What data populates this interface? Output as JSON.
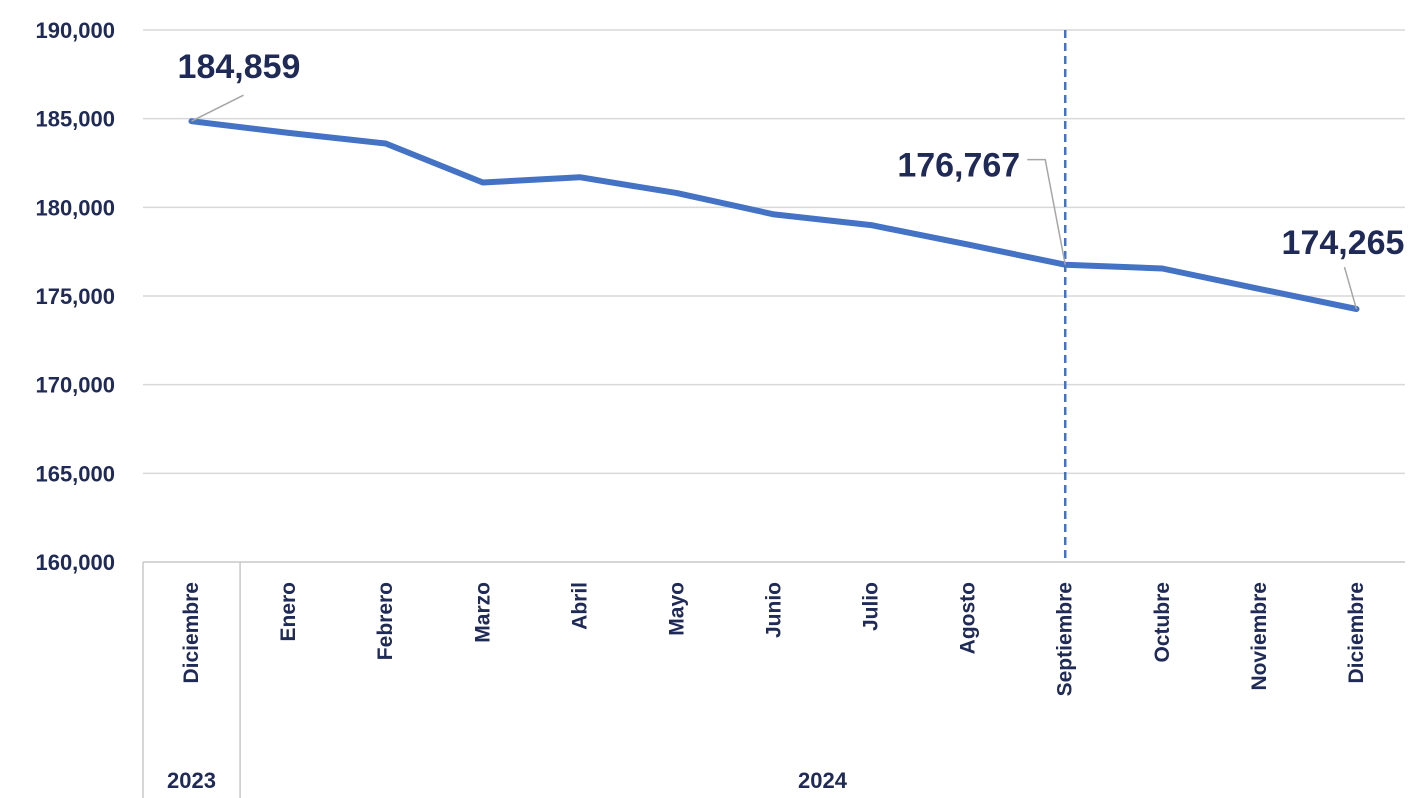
{
  "chart_data": {
    "type": "line",
    "categories": [
      "Diciembre",
      "Enero",
      "Febrero",
      "Marzo",
      "Abril",
      "Mayo",
      "Junio",
      "Julio",
      "Agosto",
      "Septiembre",
      "Octubre",
      "Noviembre",
      "Diciembre"
    ],
    "year_groups": [
      {
        "label": "2023",
        "count": 1
      },
      {
        "label": "2024",
        "count": 12
      }
    ],
    "series": [
      {
        "values": [
          184859,
          184200,
          183600,
          181400,
          181700,
          180800,
          179600,
          179000,
          177900,
          176767,
          176550,
          175400,
          174265
        ]
      }
    ],
    "data_labels": [
      {
        "index": 0,
        "text": "184,859"
      },
      {
        "index": 9,
        "text": "176,767"
      },
      {
        "index": 12,
        "text": "174,265"
      }
    ],
    "reference_line_index": 9,
    "ylim": [
      160000,
      190000
    ],
    "yticks": [
      {
        "value": 190000,
        "label": "190,000"
      },
      {
        "value": 185000,
        "label": "185,000"
      },
      {
        "value": 180000,
        "label": "180,000"
      },
      {
        "value": 175000,
        "label": "175,000"
      },
      {
        "value": 170000,
        "label": "170,000"
      },
      {
        "value": 165000,
        "label": "165,000"
      },
      {
        "value": 160000,
        "label": "160,000"
      }
    ],
    "grid": true,
    "colors": {
      "line": "#4472c4",
      "text": "#1f2a56",
      "grid": "#d9d9d9"
    }
  }
}
